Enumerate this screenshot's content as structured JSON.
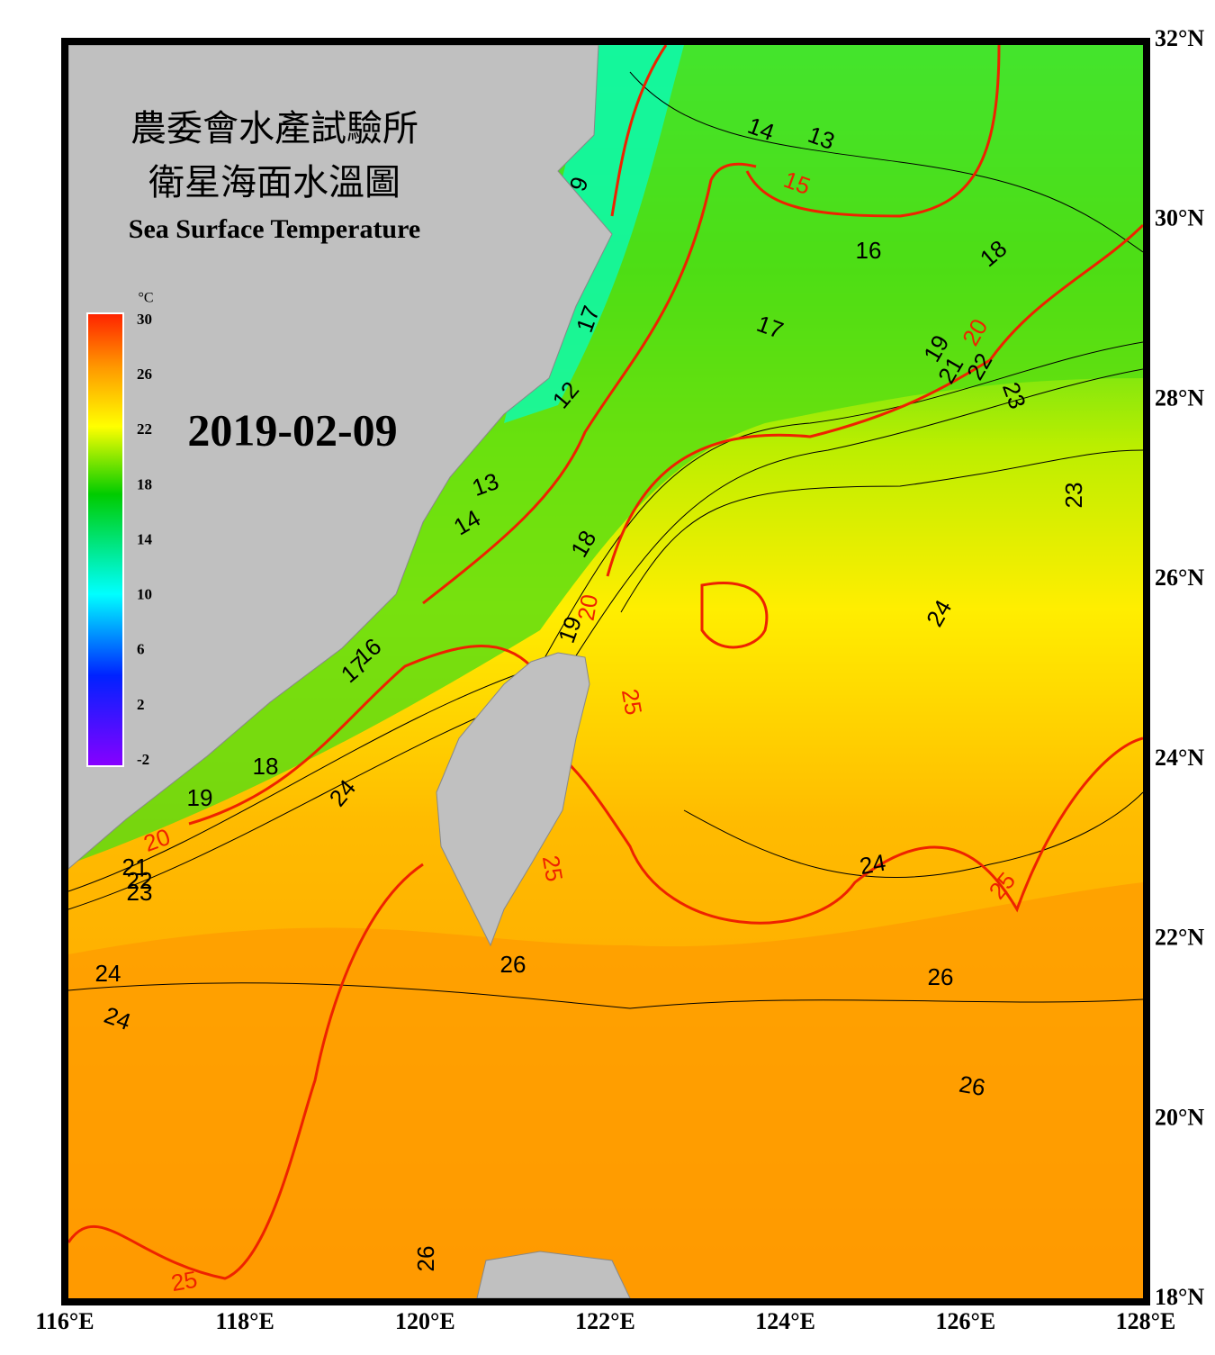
{
  "header": {
    "title_line1": "農委會水產試驗所",
    "title_line2": "衛星海面水溫圖",
    "subtitle": "Sea Surface Temperature",
    "date": "2019-02-09"
  },
  "colorbar": {
    "unit": "°C",
    "range": [
      -2,
      30
    ],
    "ticks": [
      30,
      26,
      22,
      18,
      14,
      10,
      6,
      2,
      -2
    ]
  },
  "map": {
    "xlim": [
      116,
      128
    ],
    "ylim": [
      18,
      32
    ],
    "xticks": [
      {
        "value": 116,
        "label": "116°E"
      },
      {
        "value": 118,
        "label": "118°E"
      },
      {
        "value": 120,
        "label": "120°E"
      },
      {
        "value": 122,
        "label": "122°E"
      },
      {
        "value": 124,
        "label": "124°E"
      },
      {
        "value": 126,
        "label": "126°E"
      },
      {
        "value": 128,
        "label": "128°E"
      }
    ],
    "yticks": [
      {
        "value": 18,
        "label": "18°N"
      },
      {
        "value": 20,
        "label": "20°N"
      },
      {
        "value": 22,
        "label": "22°N"
      },
      {
        "value": 24,
        "label": "24°N"
      },
      {
        "value": 26,
        "label": "26°N"
      },
      {
        "value": 28,
        "label": "28°N"
      },
      {
        "value": 30,
        "label": "30°N"
      },
      {
        "value": 32,
        "label": "32°N"
      }
    ],
    "grid": true,
    "contour_labels": [
      14,
      13,
      9,
      16,
      18,
      17,
      19,
      21,
      22,
      23,
      12,
      13,
      14,
      18,
      23,
      24,
      19,
      24,
      18,
      19,
      21,
      22,
      23,
      24,
      24,
      24,
      26,
      26,
      26,
      26,
      17,
      16,
      17,
      15,
      20,
      20,
      25,
      20,
      25,
      25,
      25
    ]
  }
}
